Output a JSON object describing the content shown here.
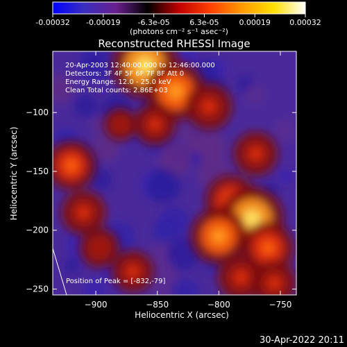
{
  "colorbar": {
    "ticks": [
      "-0.00032",
      "-0.00019",
      "-6.3e-05",
      "6.3e-05",
      "0.00019",
      "0.00032"
    ],
    "unit_label": "(photons cm⁻² s⁻¹ asec⁻²)",
    "range": [
      -0.00032,
      0.00032
    ],
    "colors": [
      "#0000ff",
      "#3a2fbf",
      "#6a1f8f",
      "#000000",
      "#c00000",
      "#ff4000",
      "#ff9a00",
      "#ffe000",
      "#ffffff"
    ]
  },
  "chart_data": {
    "type": "heatmap",
    "title": "Reconstructed RHESSI Image",
    "xlabel": "Heliocentric X (arcsec)",
    "ylabel": "Heliocentric Y (arcsec)",
    "xlim": [
      -935,
      -737
    ],
    "ylim": [
      -255,
      -48
    ],
    "x_ticks": [
      -900,
      -850,
      -800,
      -750
    ],
    "y_ticks": [
      -100,
      -150,
      -200,
      -250
    ],
    "hotspots": [
      {
        "x": -860,
        "y": -60,
        "v": 1.0
      },
      {
        "x": -835,
        "y": -82,
        "v": 0.85
      },
      {
        "x": -808,
        "y": -95,
        "v": 0.6
      },
      {
        "x": -852,
        "y": -110,
        "v": 0.5
      },
      {
        "x": -770,
        "y": -135,
        "v": 0.55
      },
      {
        "x": -790,
        "y": -175,
        "v": 0.7
      },
      {
        "x": -773,
        "y": -190,
        "v": 0.95
      },
      {
        "x": -800,
        "y": -205,
        "v": 0.8
      },
      {
        "x": -760,
        "y": -215,
        "v": 0.7
      },
      {
        "x": -782,
        "y": -240,
        "v": 0.6
      },
      {
        "x": -755,
        "y": -245,
        "v": 0.55
      },
      {
        "x": -920,
        "y": -145,
        "v": 0.65
      },
      {
        "x": -910,
        "y": -185,
        "v": 0.55
      },
      {
        "x": -897,
        "y": -215,
        "v": 0.45
      },
      {
        "x": -870,
        "y": -235,
        "v": 0.5
      },
      {
        "x": -880,
        "y": -110,
        "v": 0.3
      }
    ],
    "annotations": [
      "20-Apr-2003 12:40:00.000 to 12:46:00.000",
      "Detectors: 3F 4F 5F 6F 7F 8F  Att 0",
      "Energy Range: 12.0 - 25.0 keV",
      "Clean    Total counts: 2.86E+03",
      "Position of Peak = [-832,-79]"
    ]
  },
  "footer": {
    "timestamp": "30-Apr-2022 20:11"
  }
}
